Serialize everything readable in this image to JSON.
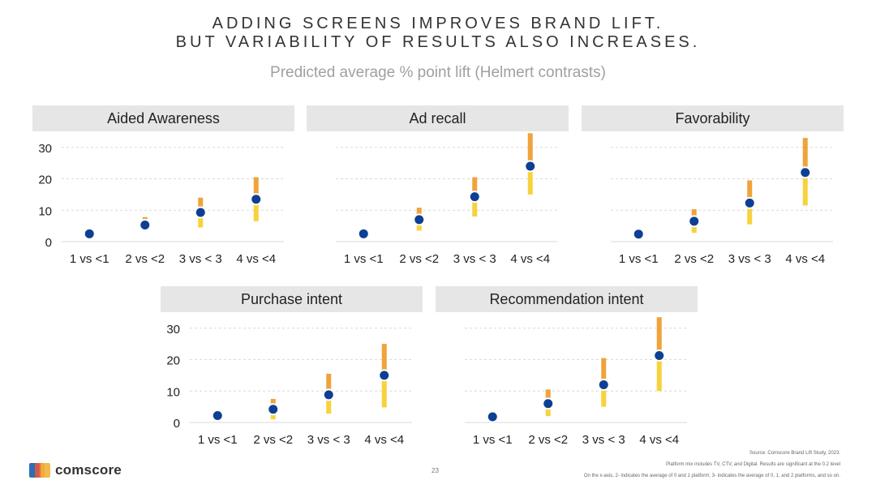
{
  "title_line1": "ADDING SCREENS IMPROVES BRAND LIFT.",
  "title_line2": "BUT VARIABILITY OF RESULTS ALSO INCREASES.",
  "subtitle": "Predicted average % point lift (Helmert contrasts)",
  "colors": {
    "dot": "#0d3f94",
    "bar_top": "#f0a33a",
    "bar_bottom": "#f7d23a",
    "panel_bg": "#e6e6e6",
    "grid": "#d9d9d9"
  },
  "chart_data": [
    {
      "type": "scatter",
      "title": "Aided Awareness",
      "ylim": [
        0,
        32
      ],
      "yticks": [
        0,
        10,
        20,
        30
      ],
      "categories": [
        "1 vs <1",
        "2 vs <2",
        "3 vs < 3",
        "4 vs <4"
      ],
      "values": [
        2.5,
        5.3,
        9.3,
        13.5
      ],
      "upper": [
        3,
        7.8,
        14,
        20.5
      ],
      "lower": [
        2,
        3.8,
        4.5,
        6.5
      ]
    },
    {
      "type": "scatter",
      "title": "Ad recall",
      "ylim": [
        0,
        32
      ],
      "yticks": [
        0,
        10,
        20,
        30
      ],
      "categories": [
        "1 vs <1",
        "2 vs <2",
        "3 vs < 3",
        "4 vs <4"
      ],
      "values": [
        2.5,
        7,
        14.3,
        24
      ],
      "upper": [
        3,
        10.8,
        20.5,
        34.5
      ],
      "lower": [
        2,
        3.5,
        8,
        15
      ]
    },
    {
      "type": "scatter",
      "title": "Favorability",
      "ylim": [
        0,
        32
      ],
      "yticks": [
        0,
        10,
        20,
        30
      ],
      "categories": [
        "1 vs <1",
        "2 vs <2",
        "3 vs < 3",
        "4 vs <4"
      ],
      "values": [
        2.4,
        6.5,
        12.3,
        22
      ],
      "upper": [
        3,
        10.3,
        19.5,
        33
      ],
      "lower": [
        1.8,
        2.8,
        5.5,
        11.5
      ]
    },
    {
      "type": "scatter",
      "title": "Purchase intent",
      "ylim": [
        0,
        32
      ],
      "yticks": [
        0,
        10,
        20,
        30
      ],
      "categories": [
        "1 vs <1",
        "2 vs <2",
        "3 vs < 3",
        "4 vs <4"
      ],
      "values": [
        2.2,
        4.2,
        8.8,
        15
      ],
      "upper": [
        2.8,
        7.5,
        15.5,
        25
      ],
      "lower": [
        1.6,
        1,
        2.8,
        4.8
      ]
    },
    {
      "type": "scatter",
      "title": "Recommendation intent",
      "ylim": [
        0,
        32
      ],
      "yticks": [
        0,
        10,
        20,
        30
      ],
      "categories": [
        "1 vs <1",
        "2 vs <2",
        "3 vs < 3",
        "4 vs <4"
      ],
      "values": [
        1.8,
        6,
        12,
        21.3
      ],
      "upper": [
        2.4,
        10.5,
        20.5,
        33.5
      ],
      "lower": [
        1.2,
        2,
        5,
        10
      ]
    }
  ],
  "footer": {
    "source": "Source: Comscore Brand Lift Study, 2023.",
    "note1": "Platform mix includes TV, CTV, and Digital. Results are significant at the 0.2 level",
    "note2": "On the x-axis, 2- indicates the average of 0 and 1 platform; 3- indicates the average of 0, 1,  and 2 platforms, and so on.",
    "page": "23",
    "logo_text": "comscore"
  }
}
